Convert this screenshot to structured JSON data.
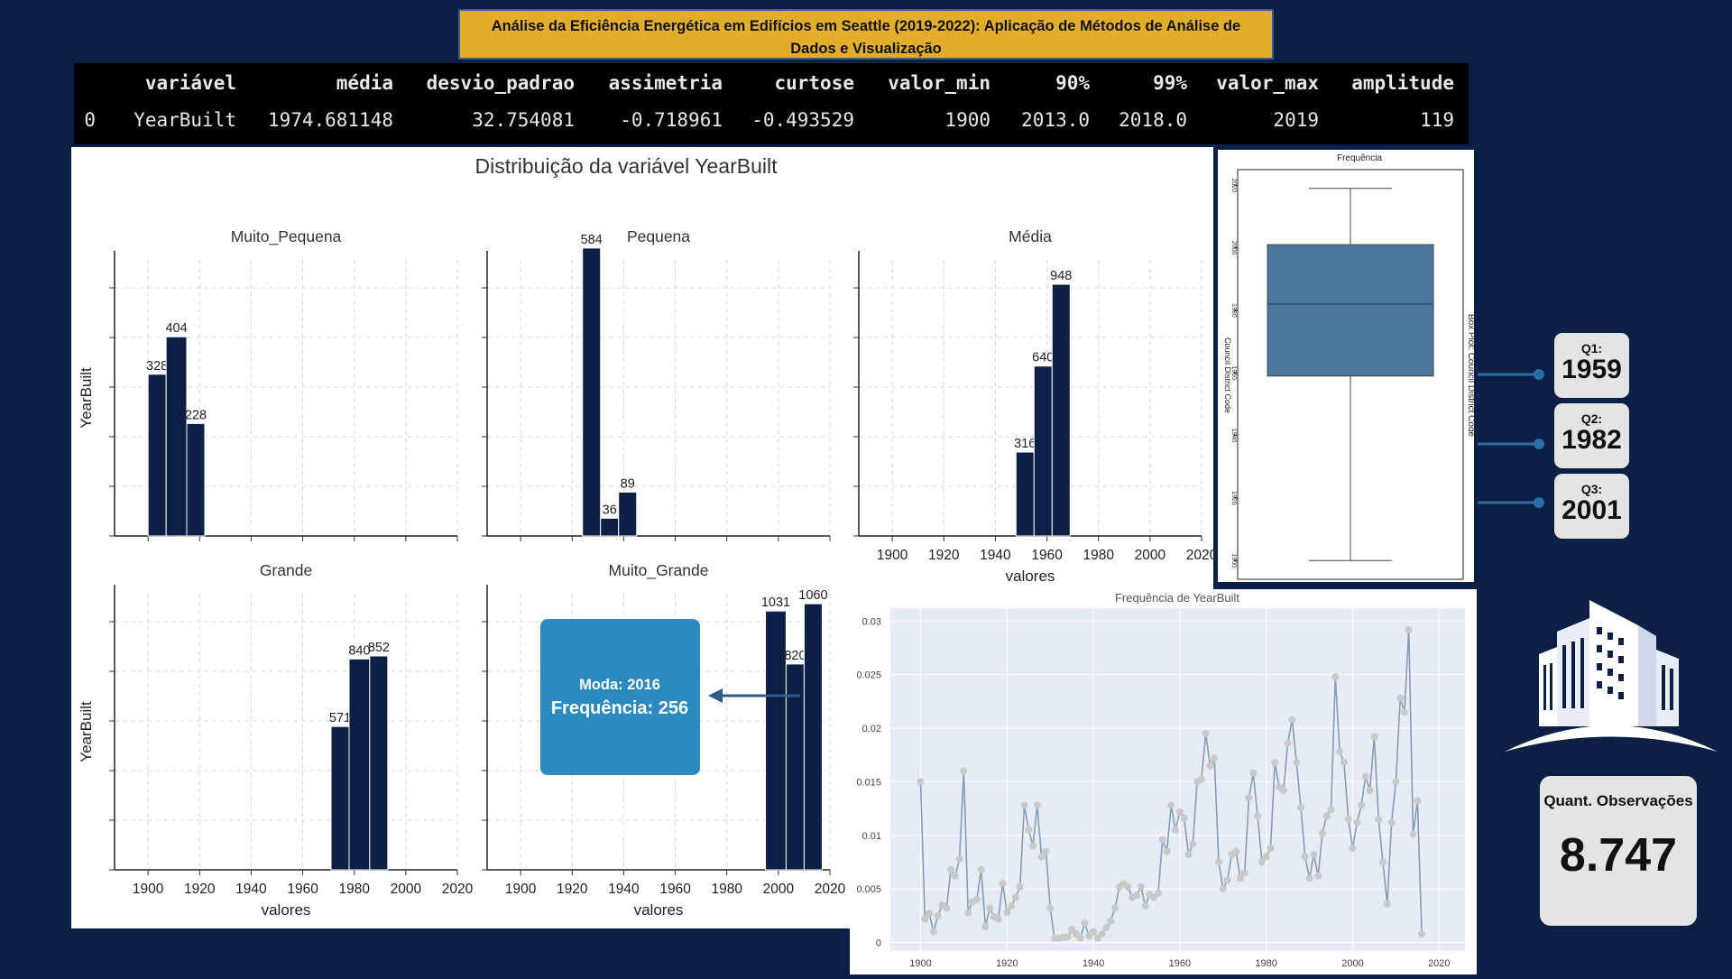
{
  "title": "Análise da Eficiência Energética em Edifícios em Seattle (2019-2022): Aplicação de Métodos de Análise de Dados e Visualização",
  "stats_table": {
    "columns": [
      "variável",
      "média",
      "desvio_padrao",
      "assimetria",
      "curtose",
      "valor_min",
      "90%",
      "99%",
      "valor_max",
      "amplitude"
    ],
    "row": [
      "0",
      "YearBuilt",
      "1974.681148",
      "32.754081",
      "-0.718961",
      "-0.493529",
      "1900",
      "2013.0",
      "2018.0",
      "2019",
      "119"
    ]
  },
  "chart_data": [
    {
      "type": "bar",
      "title": "Distribuição da variável YearBuilt",
      "x_ticks": [
        "1900",
        "1920",
        "1940",
        "1960",
        "1980",
        "2000",
        "2020"
      ],
      "xlabel": "valores",
      "ylabel": "YearBuilt",
      "xlim": [
        1894,
        2020
      ],
      "grid": true,
      "facets": [
        {
          "name": "Muito_Pequena",
          "ymax": 560,
          "bars": [
            {
              "x0": 1900,
              "x1": 1907,
              "value": 328
            },
            {
              "x0": 1907,
              "x1": 1915,
              "value": 404
            },
            {
              "x0": 1915,
              "x1": 1922,
              "value": 228
            }
          ]
        },
        {
          "name": "Pequena",
          "ymax": 560,
          "bars": [
            {
              "x0": 1924,
              "x1": 1931,
              "value": 584
            },
            {
              "x0": 1931,
              "x1": 1938,
              "value": 36
            },
            {
              "x0": 1938,
              "x1": 1945,
              "value": 89
            }
          ]
        },
        {
          "name": "Média",
          "ymax": 1040,
          "bars": [
            {
              "x0": 1948,
              "x1": 1955,
              "value": 316
            },
            {
              "x0": 1955,
              "x1": 1962,
              "value": 640
            },
            {
              "x0": 1962,
              "x1": 1969,
              "value": 948
            }
          ]
        },
        {
          "name": "Grande",
          "ymax": 1100,
          "bars": [
            {
              "x0": 1971,
              "x1": 1978,
              "value": 571
            },
            {
              "x0": 1978,
              "x1": 1986,
              "value": 840
            },
            {
              "x0": 1986,
              "x1": 1993,
              "value": 852
            }
          ]
        },
        {
          "name": "Muito_Grande",
          "ymax": 1100,
          "bars": [
            {
              "x0": 1995,
              "x1": 2003,
              "value": 1031
            },
            {
              "x0": 2003,
              "x1": 2010,
              "value": 820
            },
            {
              "x0": 2010,
              "x1": 2017,
              "value": 1060
            }
          ]
        }
      ],
      "annotation": {
        "moda": "Moda: 2016",
        "frequencia": "Frequência: 256",
        "color": "#2b8abf"
      }
    },
    {
      "type": "box",
      "title": "Frequência",
      "ylabel": "Council District Code",
      "side_label": "Box Plot: Council District Code",
      "y_ticks": [
        "1900",
        "1920",
        "1940",
        "1960",
        "1980",
        "2000",
        "2020"
      ],
      "ylim": [
        1894,
        2025
      ],
      "min": 1900,
      "q1": 1959,
      "median": 1982,
      "q3": 2001,
      "max": 2019,
      "color": "#4a78a0"
    },
    {
      "type": "line",
      "title": "Frequência de YearBuilt",
      "x_ticks": [
        "1900",
        "1920",
        "1940",
        "1960",
        "1980",
        "2000",
        "2020"
      ],
      "y_ticks": [
        "0",
        "0.005",
        "0.01",
        "0.015",
        "0.02",
        "0.025",
        "0.03"
      ],
      "xlim": [
        1893,
        2026
      ],
      "ylim": [
        -0.0008,
        0.0312
      ],
      "x_start": 1900,
      "values": [
        0.015,
        0.0022,
        0.0027,
        0.001,
        0.0025,
        0.0035,
        0.0032,
        0.0068,
        0.0062,
        0.0078,
        0.016,
        0.0028,
        0.0038,
        0.004,
        0.0068,
        0.0015,
        0.0032,
        0.0024,
        0.0022,
        0.0055,
        0.0028,
        0.0034,
        0.0042,
        0.0052,
        0.0128,
        0.0105,
        0.009,
        0.0128,
        0.008,
        0.0085,
        0.0032,
        0.0004,
        0.0004,
        0.0005,
        0.0005,
        0.0012,
        0.0008,
        0.0004,
        0.0018,
        0.0006,
        0.001,
        0.0004,
        0.0008,
        0.0014,
        0.002,
        0.0032,
        0.0052,
        0.0055,
        0.0052,
        0.0042,
        0.0044,
        0.0052,
        0.0034,
        0.0045,
        0.0042,
        0.0046,
        0.0096,
        0.0085,
        0.0128,
        0.0105,
        0.0122,
        0.0116,
        0.0082,
        0.0092,
        0.015,
        0.0152,
        0.0195,
        0.0165,
        0.0172,
        0.0075,
        0.005,
        0.0058,
        0.0082,
        0.0085,
        0.006,
        0.0065,
        0.0135,
        0.0158,
        0.0118,
        0.0075,
        0.008,
        0.0088,
        0.0168,
        0.0145,
        0.0142,
        0.0186,
        0.0208,
        0.0168,
        0.0126,
        0.008,
        0.006,
        0.0082,
        0.0062,
        0.0102,
        0.0118,
        0.0124,
        0.0248,
        0.0178,
        0.0168,
        0.0115,
        0.0088,
        0.0112,
        0.0128,
        0.0155,
        0.0142,
        0.0192,
        0.0115,
        0.0075,
        0.0036,
        0.0112,
        0.015,
        0.0228,
        0.0215,
        0.0292,
        0.0101,
        0.0132,
        0.0008
      ],
      "grid": true
    }
  ],
  "quartiles": [
    {
      "label": "Q1:",
      "value": "1959"
    },
    {
      "label": "Q2:",
      "value": "1982"
    },
    {
      "label": "Q3:",
      "value": "2001"
    }
  ],
  "observations": {
    "label": "Quant. Observações",
    "value": "8.747"
  },
  "colors": {
    "background": "#0c1f44",
    "banner": "#e2ad2b",
    "bar": "#0c1f44",
    "line": "#8a9bb4",
    "marker": "#c8c8c8",
    "plot_bg": "#e5ecf6"
  },
  "icons": {
    "building": "building-icon"
  }
}
